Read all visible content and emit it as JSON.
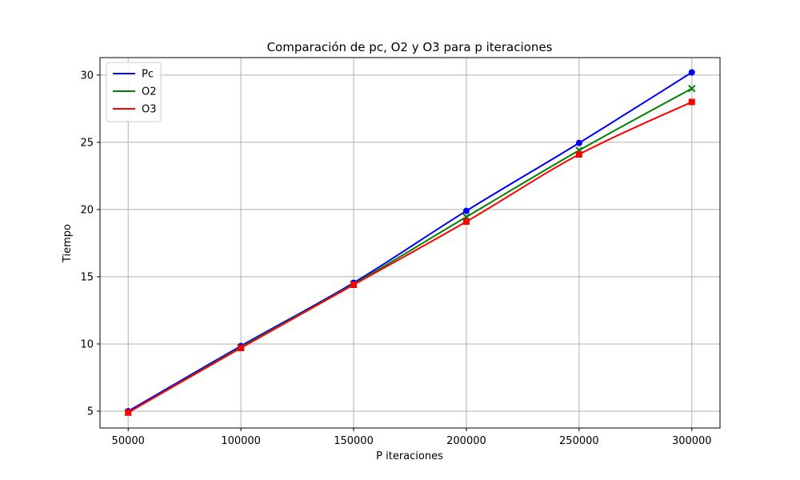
{
  "chart_data": {
    "type": "line",
    "title": "Comparación de pc, O2 y O3 para p iteraciones",
    "xlabel": "P iteraciones",
    "ylabel": "Tiempo",
    "x": [
      50000,
      100000,
      150000,
      200000,
      250000,
      300000
    ],
    "xlim": [
      37500,
      312500
    ],
    "ylim": [
      3.75,
      31.3
    ],
    "xticks": [
      50000,
      100000,
      150000,
      200000,
      250000,
      300000
    ],
    "yticks": [
      5,
      10,
      15,
      20,
      25,
      30
    ],
    "grid": true,
    "legend_position": "top-left",
    "series": [
      {
        "name": "Pc",
        "color": "#0000ff",
        "marker": "circle",
        "values": [
          5.0,
          9.85,
          14.55,
          19.9,
          24.95,
          30.2
        ]
      },
      {
        "name": "O2",
        "color": "#008000",
        "marker": "x",
        "values": [
          4.9,
          9.75,
          14.45,
          19.45,
          24.4,
          29.0
        ]
      },
      {
        "name": "O3",
        "color": "#ff0000",
        "marker": "square",
        "values": [
          4.9,
          9.7,
          14.4,
          19.1,
          24.1,
          28.0
        ]
      }
    ]
  }
}
